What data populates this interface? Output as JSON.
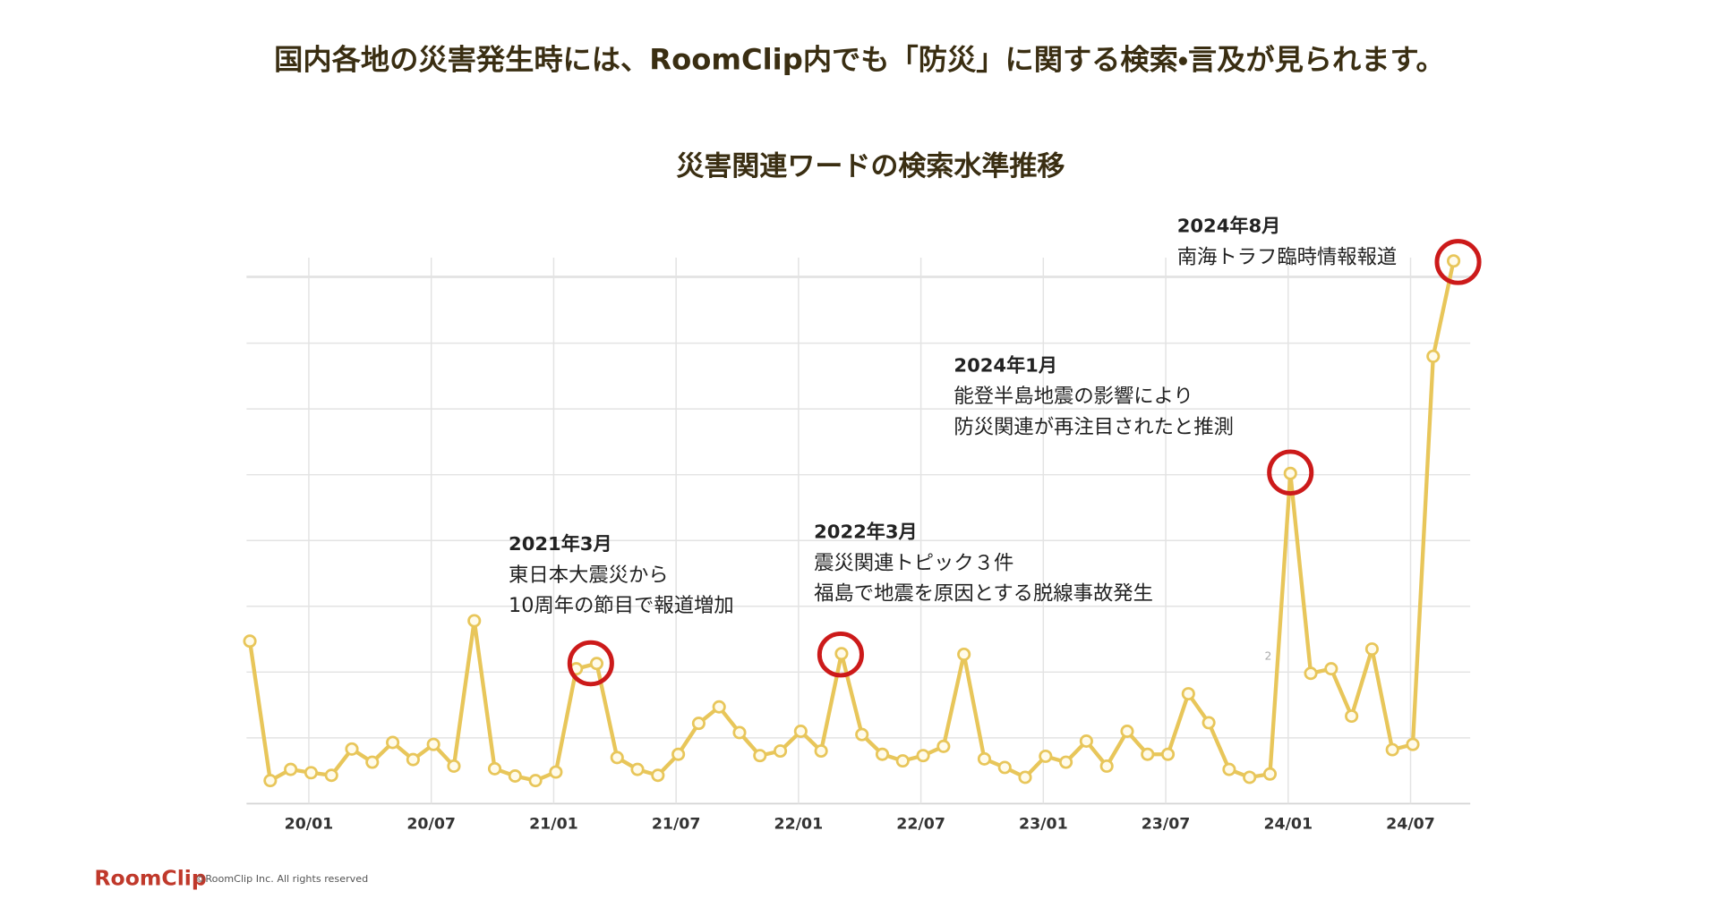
{
  "headline": "国内各地の災害発生時には、RoomClip内でも「防災」に関する検索・言及が見られます。",
  "chart_data": {
    "type": "line",
    "title": "災害関連ワードの検索水準推移",
    "categories": [
      null,
      null,
      null,
      "20/01",
      null,
      null,
      null,
      null,
      null,
      "20/07",
      null,
      null,
      null,
      null,
      null,
      "21/01",
      null,
      null,
      null,
      null,
      null,
      "21/07",
      null,
      null,
      null,
      null,
      null,
      "22/01",
      null,
      null,
      null,
      null,
      null,
      "22/07",
      null,
      null,
      null,
      null,
      null,
      "23/01",
      null,
      null,
      null,
      null,
      null,
      "23/07",
      null,
      null,
      null,
      null,
      null,
      "24/01",
      null,
      null,
      null,
      null,
      null,
      "24/07",
      null,
      null
    ],
    "series": [
      {
        "color": "#e8c65a",
        "values": [
          2.47,
          0.35,
          0.52,
          0.47,
          0.43,
          0.83,
          0.63,
          0.93,
          0.67,
          0.9,
          0.57,
          2.78,
          0.53,
          0.42,
          0.35,
          0.48,
          2.05,
          2.13,
          0.7,
          0.52,
          0.43,
          0.75,
          1.22,
          1.47,
          1.08,
          0.73,
          0.8,
          1.1,
          0.8,
          2.28,
          1.05,
          0.75,
          0.65,
          0.73,
          0.87,
          2.27,
          0.68,
          0.55,
          0.4,
          0.72,
          0.63,
          0.95,
          0.57,
          1.1,
          0.75,
          0.75,
          1.67,
          1.23,
          0.52,
          0.4,
          0.45,
          5.02,
          1.98,
          2.05,
          1.33,
          2.35,
          0.82,
          0.9,
          6.8,
          8.25
        ]
      }
    ],
    "ylim": [
      0,
      8.3
    ],
    "grid": true,
    "stray_label": "2",
    "annotations": [
      {
        "title": "2021年3月",
        "lines": [
          "東日本大震災から",
          "10周年の節目で報道増加"
        ]
      },
      {
        "title": "2022年3月",
        "lines": [
          "震災関連トピック３件",
          "福島で地震を原因とする脱線事故発生"
        ]
      },
      {
        "title": "2024年1月",
        "lines": [
          "能登半島地震の影響により",
          "防災関連が再注目されたと推測"
        ]
      },
      {
        "title": "2024年8月",
        "lines": [
          "南海トラフ臨時情報報道"
        ]
      }
    ]
  },
  "footer": {
    "logo": "RoomClip",
    "copyright": "©RoomClip Inc. All rights reserved"
  }
}
